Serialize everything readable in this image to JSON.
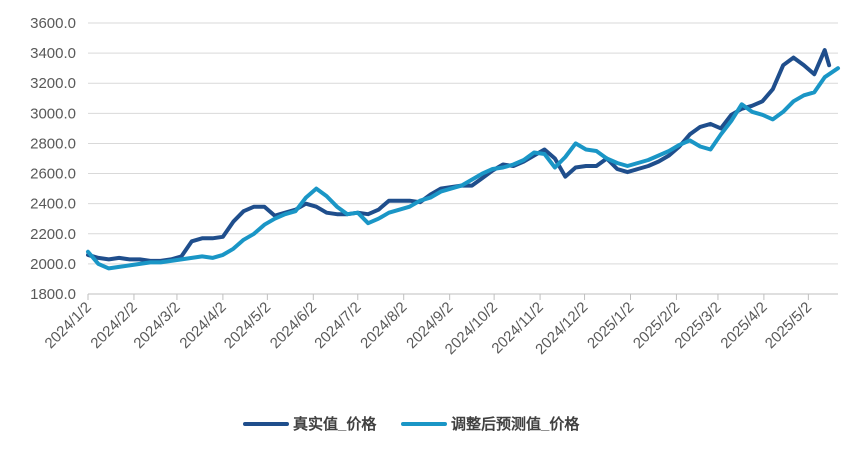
{
  "chart_data": {
    "type": "line",
    "title": "",
    "xlabel": "",
    "ylabel": "",
    "ylim": [
      1800,
      3600
    ],
    "yticks": [
      "1800.0",
      "2000.0",
      "2200.0",
      "2400.0",
      "2600.0",
      "2800.0",
      "3000.0",
      "3200.0",
      "3400.0",
      "3600.0"
    ],
    "xticks": [
      "2024/1/2",
      "2024/2/2",
      "2024/3/2",
      "2024/4/2",
      "2024/5/2",
      "2024/6/2",
      "2024/7/2",
      "2024/8/2",
      "2024/9/2",
      "2024/10/2",
      "2024/11/2",
      "2024/12/2",
      "2025/1/2",
      "2025/2/2",
      "2025/3/2",
      "2025/4/2",
      "2025/5/2"
    ],
    "x_start": "2024/1/2",
    "x_end": "2025/5/22",
    "grid": true,
    "legend_position": "bottom-center",
    "series": [
      {
        "name": "真实值_价格",
        "color": "#1f4e8c",
        "points": [
          [
            "2024/1/2",
            2060
          ],
          [
            "2024/1/9",
            2040
          ],
          [
            "2024/1/16",
            2030
          ],
          [
            "2024/1/23",
            2040
          ],
          [
            "2024/1/30",
            2030
          ],
          [
            "2024/2/6",
            2030
          ],
          [
            "2024/2/13",
            2020
          ],
          [
            "2024/2/20",
            2020
          ],
          [
            "2024/2/27",
            2030
          ],
          [
            "2024/3/5",
            2050
          ],
          [
            "2024/3/12",
            2150
          ],
          [
            "2024/3/19",
            2170
          ],
          [
            "2024/3/26",
            2170
          ],
          [
            "2024/4/2",
            2180
          ],
          [
            "2024/4/9",
            2280
          ],
          [
            "2024/4/16",
            2350
          ],
          [
            "2024/4/23",
            2380
          ],
          [
            "2024/4/30",
            2380
          ],
          [
            "2024/5/7",
            2320
          ],
          [
            "2024/5/14",
            2340
          ],
          [
            "2024/5/21",
            2360
          ],
          [
            "2024/5/28",
            2400
          ],
          [
            "2024/6/4",
            2380
          ],
          [
            "2024/6/11",
            2340
          ],
          [
            "2024/6/18",
            2330
          ],
          [
            "2024/6/25",
            2330
          ],
          [
            "2024/7/2",
            2340
          ],
          [
            "2024/7/9",
            2330
          ],
          [
            "2024/7/16",
            2360
          ],
          [
            "2024/7/23",
            2420
          ],
          [
            "2024/7/30",
            2420
          ],
          [
            "2024/8/6",
            2420
          ],
          [
            "2024/8/13",
            2410
          ],
          [
            "2024/8/20",
            2460
          ],
          [
            "2024/8/27",
            2500
          ],
          [
            "2024/9/3",
            2510
          ],
          [
            "2024/9/10",
            2520
          ],
          [
            "2024/9/17",
            2520
          ],
          [
            "2024/9/24",
            2570
          ],
          [
            "2024/10/1",
            2620
          ],
          [
            "2024/10/8",
            2660
          ],
          [
            "2024/10/15",
            2650
          ],
          [
            "2024/10/22",
            2680
          ],
          [
            "2024/10/29",
            2720
          ],
          [
            "2024/11/5",
            2760
          ],
          [
            "2024/11/12",
            2700
          ],
          [
            "2024/11/19",
            2580
          ],
          [
            "2024/11/26",
            2640
          ],
          [
            "2024/12/3",
            2650
          ],
          [
            "2024/12/10",
            2650
          ],
          [
            "2024/12/17",
            2700
          ],
          [
            "2024/12/24",
            2630
          ],
          [
            "2024/12/31",
            2610
          ],
          [
            "2025/1/7",
            2630
          ],
          [
            "2025/1/14",
            2650
          ],
          [
            "2025/1/21",
            2680
          ],
          [
            "2025/1/28",
            2720
          ],
          [
            "2025/2/4",
            2780
          ],
          [
            "2025/2/11",
            2860
          ],
          [
            "2025/2/18",
            2910
          ],
          [
            "2025/2/25",
            2930
          ],
          [
            "2025/3/4",
            2900
          ],
          [
            "2025/3/11",
            2990
          ],
          [
            "2025/3/18",
            3030
          ],
          [
            "2025/3/25",
            3050
          ],
          [
            "2025/4/1",
            3080
          ],
          [
            "2025/4/8",
            3160
          ],
          [
            "2025/4/15",
            3320
          ],
          [
            "2025/4/22",
            3370
          ],
          [
            "2025/4/29",
            3320
          ],
          [
            "2025/5/6",
            3260
          ],
          [
            "2025/5/13",
            3420
          ],
          [
            "2025/5/16",
            3320
          ]
        ]
      },
      {
        "name": "调整后预测值_价格",
        "color": "#1a96c6",
        "points": [
          [
            "2024/1/2",
            2080
          ],
          [
            "2024/1/9",
            2000
          ],
          [
            "2024/1/16",
            1970
          ],
          [
            "2024/1/23",
            1980
          ],
          [
            "2024/1/30",
            1990
          ],
          [
            "2024/2/6",
            2000
          ],
          [
            "2024/2/13",
            2010
          ],
          [
            "2024/2/20",
            2010
          ],
          [
            "2024/2/27",
            2020
          ],
          [
            "2024/3/5",
            2030
          ],
          [
            "2024/3/12",
            2040
          ],
          [
            "2024/3/19",
            2050
          ],
          [
            "2024/3/26",
            2040
          ],
          [
            "2024/4/2",
            2060
          ],
          [
            "2024/4/9",
            2100
          ],
          [
            "2024/4/16",
            2160
          ],
          [
            "2024/4/23",
            2200
          ],
          [
            "2024/4/30",
            2260
          ],
          [
            "2024/5/7",
            2300
          ],
          [
            "2024/5/14",
            2330
          ],
          [
            "2024/5/21",
            2350
          ],
          [
            "2024/5/28",
            2440
          ],
          [
            "2024/6/4",
            2500
          ],
          [
            "2024/6/11",
            2450
          ],
          [
            "2024/6/18",
            2380
          ],
          [
            "2024/6/25",
            2330
          ],
          [
            "2024/7/2",
            2340
          ],
          [
            "2024/7/9",
            2270
          ],
          [
            "2024/7/16",
            2300
          ],
          [
            "2024/7/23",
            2340
          ],
          [
            "2024/7/30",
            2360
          ],
          [
            "2024/8/6",
            2380
          ],
          [
            "2024/8/13",
            2420
          ],
          [
            "2024/8/20",
            2440
          ],
          [
            "2024/8/27",
            2480
          ],
          [
            "2024/9/3",
            2500
          ],
          [
            "2024/9/10",
            2520
          ],
          [
            "2024/9/17",
            2560
          ],
          [
            "2024/9/24",
            2600
          ],
          [
            "2024/10/1",
            2630
          ],
          [
            "2024/10/8",
            2640
          ],
          [
            "2024/10/15",
            2660
          ],
          [
            "2024/10/22",
            2690
          ],
          [
            "2024/10/29",
            2740
          ],
          [
            "2024/11/5",
            2730
          ],
          [
            "2024/11/12",
            2640
          ],
          [
            "2024/11/19",
            2710
          ],
          [
            "2024/11/26",
            2800
          ],
          [
            "2024/12/3",
            2760
          ],
          [
            "2024/12/10",
            2750
          ],
          [
            "2024/12/17",
            2700
          ],
          [
            "2024/12/24",
            2670
          ],
          [
            "2024/12/31",
            2650
          ],
          [
            "2025/1/7",
            2670
          ],
          [
            "2025/1/14",
            2690
          ],
          [
            "2025/1/21",
            2720
          ],
          [
            "2025/1/28",
            2750
          ],
          [
            "2025/2/4",
            2790
          ],
          [
            "2025/2/11",
            2820
          ],
          [
            "2025/2/18",
            2780
          ],
          [
            "2025/2/25",
            2760
          ],
          [
            "2025/3/4",
            2860
          ],
          [
            "2025/3/11",
            2950
          ],
          [
            "2025/3/18",
            3060
          ],
          [
            "2025/3/25",
            3010
          ],
          [
            "2025/4/1",
            2990
          ],
          [
            "2025/4/8",
            2960
          ],
          [
            "2025/4/15",
            3010
          ],
          [
            "2025/4/22",
            3080
          ],
          [
            "2025/4/29",
            3120
          ],
          [
            "2025/5/6",
            3140
          ],
          [
            "2025/5/13",
            3240
          ],
          [
            "2025/5/22",
            3300
          ]
        ]
      }
    ]
  }
}
